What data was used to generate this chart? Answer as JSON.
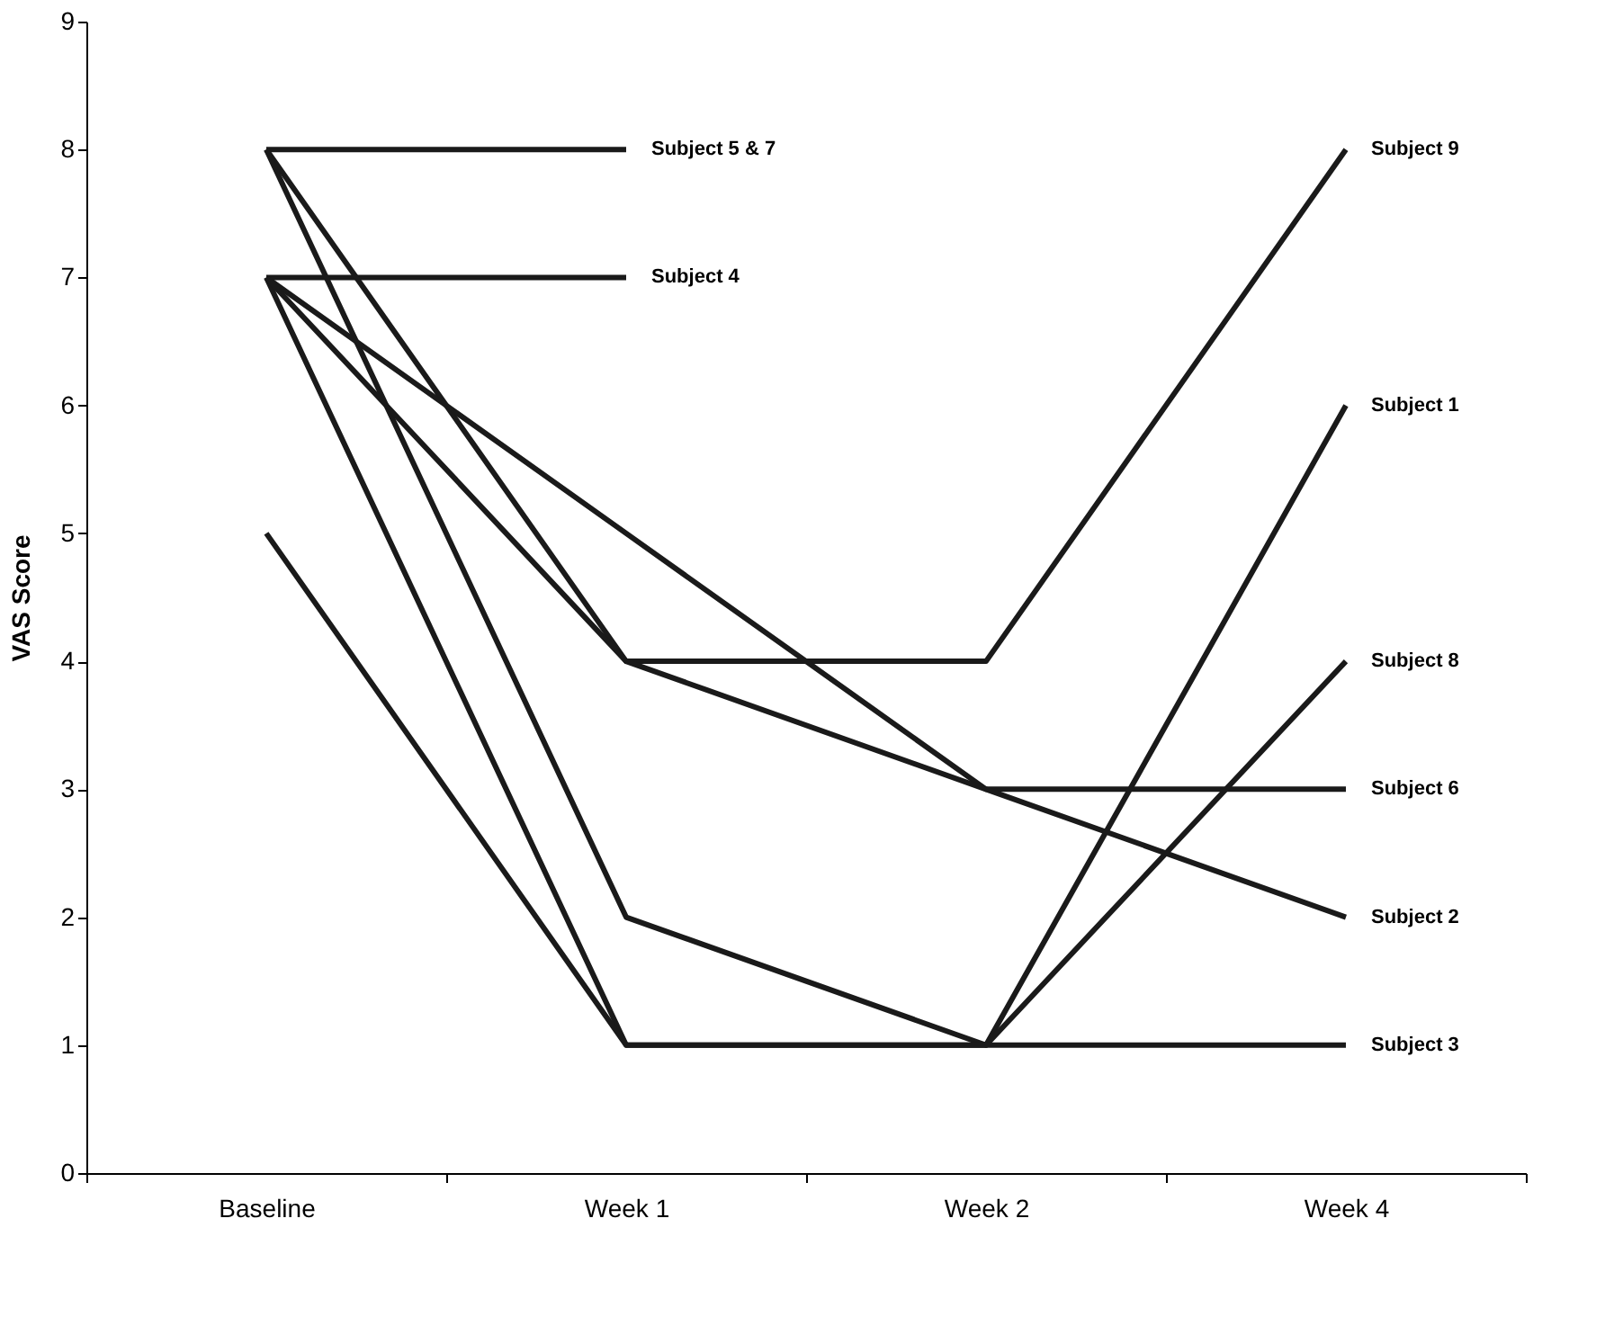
{
  "chart_data": {
    "type": "line",
    "ylabel": "VAS Score",
    "categories": [
      "Baseline",
      "Week 1",
      "Week 2",
      "Week 4"
    ],
    "ylim": [
      0,
      9
    ],
    "yticks": [
      0,
      1,
      2,
      3,
      4,
      5,
      6,
      7,
      8,
      9
    ],
    "grid": false,
    "legend": false,
    "line_style": "solid",
    "series": [
      {
        "name": "Subject 5 & 7",
        "color": "#1a1a1a",
        "values": [
          8,
          8,
          null,
          null
        ]
      },
      {
        "name": "Subject 4",
        "color": "#1a1a1a",
        "values": [
          7,
          7,
          null,
          null
        ]
      },
      {
        "name": "Subject 9",
        "color": "#1a1a1a",
        "values": [
          8,
          4,
          4,
          8
        ]
      },
      {
        "name": "Subject 1",
        "color": "#1a1a1a",
        "values": [
          8,
          2,
          1,
          6
        ]
      },
      {
        "name": "Subject 8",
        "color": "#1a1a1a",
        "values": [
          7,
          1,
          1,
          4
        ]
      },
      {
        "name": "Subject 6",
        "color": "#1a1a1a",
        "values": [
          7,
          5,
          3,
          3
        ]
      },
      {
        "name": "Subject 2",
        "color": "#1a1a1a",
        "values": [
          7,
          4,
          3,
          2
        ]
      },
      {
        "name": "Subject 3",
        "color": "#1a1a1a",
        "values": [
          5,
          1,
          1,
          1
        ]
      }
    ]
  }
}
